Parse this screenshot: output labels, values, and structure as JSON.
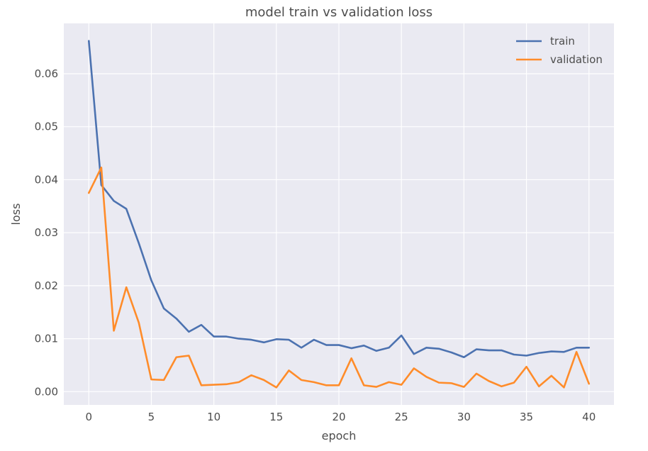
{
  "chart_data": {
    "type": "line",
    "title": "model train vs validation loss",
    "xlabel": "epoch",
    "ylabel": "loss",
    "xlim": [
      -2,
      42
    ],
    "ylim": [
      -0.0025,
      0.0695
    ],
    "xticks": [
      0,
      5,
      10,
      15,
      20,
      25,
      30,
      35,
      40
    ],
    "yticks": [
      0.0,
      0.01,
      0.02,
      0.03,
      0.04,
      0.05,
      0.06
    ],
    "ytick_labels": [
      "0.00",
      "0.01",
      "0.02",
      "0.03",
      "0.04",
      "0.05",
      "0.06"
    ],
    "grid": true,
    "legend_position": "top-right",
    "colors": {
      "background": "#eaeaf2",
      "grid": "#ffffff"
    },
    "x": [
      0,
      1,
      2,
      3,
      4,
      5,
      6,
      7,
      8,
      9,
      10,
      11,
      12,
      13,
      14,
      15,
      16,
      17,
      18,
      19,
      20,
      21,
      22,
      23,
      24,
      25,
      26,
      27,
      28,
      29,
      30,
      31,
      32,
      33,
      34,
      35,
      36,
      37,
      38,
      39,
      40
    ],
    "series": [
      {
        "name": "train",
        "color": "#4c72b0",
        "values": [
          0.0662,
          0.039,
          0.036,
          0.0345,
          0.028,
          0.021,
          0.0157,
          0.0138,
          0.0113,
          0.0126,
          0.0104,
          0.0104,
          0.01,
          0.0098,
          0.0093,
          0.0099,
          0.0098,
          0.0083,
          0.0098,
          0.0088,
          0.0088,
          0.0082,
          0.0087,
          0.0077,
          0.0083,
          0.0106,
          0.0071,
          0.0083,
          0.0081,
          0.0074,
          0.0065,
          0.008,
          0.0078,
          0.0078,
          0.007,
          0.0068,
          0.0073,
          0.0076,
          0.0075,
          0.0083,
          0.0083
        ]
      },
      {
        "name": "validation",
        "color": "#ff8c2a",
        "values": [
          0.0375,
          0.0423,
          0.0115,
          0.0197,
          0.013,
          0.0023,
          0.0022,
          0.0065,
          0.0068,
          0.0012,
          0.0013,
          0.0014,
          0.0018,
          0.0031,
          0.0022,
          0.0008,
          0.004,
          0.0022,
          0.0018,
          0.0012,
          0.0012,
          0.0063,
          0.0012,
          0.0009,
          0.0018,
          0.0013,
          0.0044,
          0.0028,
          0.0017,
          0.0016,
          0.0009,
          0.0034,
          0.002,
          0.001,
          0.0017,
          0.0047,
          0.001,
          0.003,
          0.0008,
          0.0075,
          0.0015
        ]
      }
    ]
  }
}
